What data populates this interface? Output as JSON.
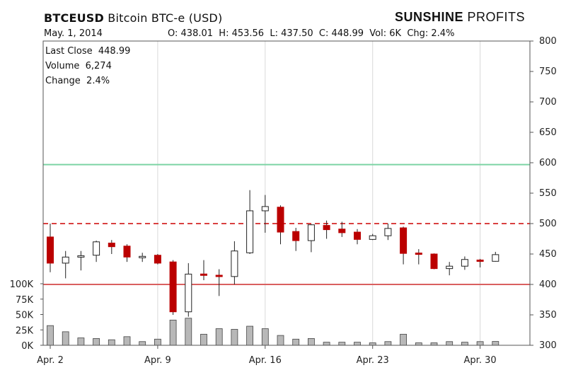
{
  "header": {
    "symbol": "BTCEUSD",
    "name": "Bitcoin  BTC-e  (USD)",
    "brand_bold": "SUNSHINE",
    "brand_light": " PROFITS"
  },
  "info_row": {
    "date": "May. 1, 2014",
    "o_label": "O:",
    "o_value": "438.01",
    "h_label": "H:",
    "h_value": "453.56",
    "l_label": "L:",
    "l_value": "437.50",
    "c_label": "C:",
    "c_value": "448.99",
    "vol_label": "Vol:",
    "vol_value": "6K",
    "chg_label": "Chg:",
    "chg_value": "2.4%"
  },
  "info_box": {
    "last_close_label": "Last Close",
    "last_close_value": "448.99",
    "volume_label": "Volume",
    "volume_value": "6,274",
    "change_label": "Change",
    "change_value": "2.4%"
  },
  "colors": {
    "up_fill": "#ffffff",
    "down_fill": "#bb0000",
    "wick": "#222222",
    "volume_bar": "#b8b8b8",
    "resistance_green": "#7cd4a4",
    "support_red": "#d96060",
    "dashed_red": "#d94040",
    "grid": "#d8d8d8"
  },
  "chart_data": {
    "type": "candlestick",
    "price_ylim": [
      300,
      800
    ],
    "price_ticks": [
      "300",
      "350",
      "400",
      "450",
      "500",
      "550",
      "600",
      "650",
      "700",
      "750",
      "800"
    ],
    "volume_ylim": [
      0,
      100000
    ],
    "volume_ticks": [
      "0K",
      "25K",
      "50K",
      "75K",
      "100K"
    ],
    "x_tick_labels": [
      "Apr. 2",
      "Apr. 9",
      "Apr. 16",
      "Apr. 23",
      "Apr. 30"
    ],
    "x_tick_days": [
      0,
      7,
      14,
      21,
      28
    ],
    "grid": "vertical at x ticks",
    "horizontal_lines": [
      {
        "value": 597,
        "style": "solid",
        "color": "#7cd4a4"
      },
      {
        "value": 500,
        "style": "dashed",
        "color": "#d94040"
      },
      {
        "value": 400,
        "style": "solid",
        "color": "#d96060"
      }
    ],
    "candles": [
      {
        "day": 0,
        "date": "Apr. 2",
        "o": 478,
        "h": 500,
        "l": 420,
        "c": 435,
        "vol": 32000
      },
      {
        "day": 1,
        "o": 435,
        "h": 455,
        "l": 410,
        "c": 445,
        "vol": 22000
      },
      {
        "day": 2,
        "o": 445,
        "h": 455,
        "l": 423,
        "c": 447,
        "vol": 12000
      },
      {
        "day": 3,
        "o": 448,
        "h": 472,
        "l": 437,
        "c": 470,
        "vol": 11000
      },
      {
        "day": 4,
        "o": 468,
        "h": 473,
        "l": 450,
        "c": 462,
        "vol": 9000
      },
      {
        "day": 5,
        "o": 463,
        "h": 466,
        "l": 437,
        "c": 445,
        "vol": 14000
      },
      {
        "day": 6,
        "o": 444,
        "h": 452,
        "l": 437,
        "c": 446,
        "vol": 6000
      },
      {
        "day": 7,
        "date": "Apr. 9",
        "o": 448,
        "h": 450,
        "l": 433,
        "c": 435,
        "vol": 10000
      },
      {
        "day": 8,
        "o": 437,
        "h": 440,
        "l": 350,
        "c": 355,
        "vol": 41000
      },
      {
        "day": 9,
        "o": 355,
        "h": 435,
        "l": 347,
        "c": 417,
        "vol": 44000
      },
      {
        "day": 10,
        "o": 417,
        "h": 440,
        "l": 407,
        "c": 415,
        "vol": 18000
      },
      {
        "day": 11,
        "o": 415,
        "h": 425,
        "l": 381,
        "c": 413,
        "vol": 27000
      },
      {
        "day": 12,
        "o": 413,
        "h": 471,
        "l": 400,
        "c": 455,
        "vol": 26000
      },
      {
        "day": 13,
        "o": 452,
        "h": 555,
        "l": 450,
        "c": 521,
        "vol": 31000
      },
      {
        "day": 14,
        "date": "Apr. 16",
        "o": 521,
        "h": 547,
        "l": 485,
        "c": 528,
        "vol": 27000
      },
      {
        "day": 15,
        "o": 527,
        "h": 530,
        "l": 466,
        "c": 486,
        "vol": 16000
      },
      {
        "day": 16,
        "o": 487,
        "h": 493,
        "l": 455,
        "c": 472,
        "vol": 10000
      },
      {
        "day": 17,
        "o": 472,
        "h": 499,
        "l": 453,
        "c": 498,
        "vol": 11000
      },
      {
        "day": 18,
        "o": 497,
        "h": 505,
        "l": 475,
        "c": 490,
        "vol": 5000
      },
      {
        "day": 19,
        "o": 491,
        "h": 503,
        "l": 478,
        "c": 485,
        "vol": 5000
      },
      {
        "day": 20,
        "o": 486,
        "h": 491,
        "l": 466,
        "c": 474,
        "vol": 5000
      },
      {
        "day": 21,
        "date": "Apr. 23",
        "o": 474,
        "h": 483,
        "l": 473,
        "c": 480,
        "vol": 4000
      },
      {
        "day": 22,
        "o": 480,
        "h": 500,
        "l": 473,
        "c": 492,
        "vol": 6000
      },
      {
        "day": 23,
        "o": 493,
        "h": 495,
        "l": 433,
        "c": 451,
        "vol": 18000
      },
      {
        "day": 24,
        "o": 451,
        "h": 458,
        "l": 433,
        "c": 450,
        "vol": 4000
      },
      {
        "day": 25,
        "o": 450,
        "h": 451,
        "l": 425,
        "c": 426,
        "vol": 4000
      },
      {
        "day": 26,
        "o": 426,
        "h": 437,
        "l": 415,
        "c": 430,
        "vol": 6000
      },
      {
        "day": 27,
        "o": 430,
        "h": 446,
        "l": 424,
        "c": 441,
        "vol": 5000
      },
      {
        "day": 28,
        "date": "Apr. 30",
        "o": 440,
        "h": 442,
        "l": 428,
        "c": 438,
        "vol": 6000
      },
      {
        "day": 29,
        "date": "May. 1",
        "o": 438.01,
        "h": 453.56,
        "l": 437.5,
        "c": 448.99,
        "vol": 6274
      }
    ]
  }
}
